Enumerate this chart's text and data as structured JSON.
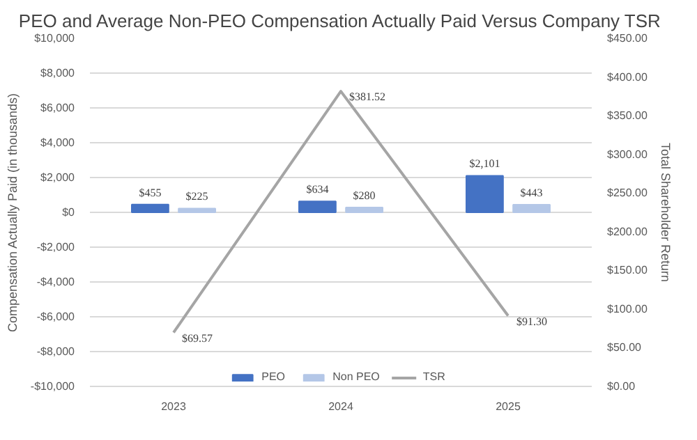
{
  "chart_data": {
    "type": "bar",
    "title": "PEO and Average Non-PEO Compensation Actually Paid Versus Company TSR",
    "ylabel": "Compensation Actually Paid (in thousands)",
    "y2label": "Total Shareholder Return",
    "categories": [
      "2023",
      "2024",
      "2025"
    ],
    "series": [
      {
        "name": "PEO",
        "color": "#4472c4",
        "values": [
          455,
          634,
          2101
        ],
        "value_labels": [
          "$455",
          "$634",
          "$2,101"
        ]
      },
      {
        "name": "Non PEO",
        "color": "#b4c7e7",
        "values": [
          225,
          280,
          443
        ],
        "value_labels": [
          "$225",
          "$280",
          "$443"
        ]
      },
      {
        "name": "TSR",
        "type": "line",
        "axis": "y2",
        "color": "#a5a5a5",
        "values": [
          69.57,
          381.52,
          91.3
        ],
        "value_labels": [
          "$69.57",
          "$381.52",
          "$91.30"
        ]
      }
    ],
    "ylim": [
      -10000,
      10000
    ],
    "yticks": [
      {
        "value": -10000,
        "label": "-$10,000"
      },
      {
        "value": -8000,
        "label": "-$8,000"
      },
      {
        "value": -6000,
        "label": "-$6,000"
      },
      {
        "value": -4000,
        "label": "-$4,000"
      },
      {
        "value": -2000,
        "label": "-$2,000"
      },
      {
        "value": 0,
        "label": "$0"
      },
      {
        "value": 2000,
        "label": "$2,000"
      },
      {
        "value": 4000,
        "label": "$4,000"
      },
      {
        "value": 6000,
        "label": "$6,000"
      },
      {
        "value": 8000,
        "label": "$8,000"
      },
      {
        "value": 10000,
        "label": "$10,000"
      }
    ],
    "y2lim": [
      0,
      450
    ],
    "y2ticks": [
      {
        "value": 0,
        "label": "$0.00"
      },
      {
        "value": 50,
        "label": "$50.00"
      },
      {
        "value": 100,
        "label": "$100.00"
      },
      {
        "value": 150,
        "label": "$150.00"
      },
      {
        "value": 200,
        "label": "$200.00"
      },
      {
        "value": 250,
        "label": "$250.00"
      },
      {
        "value": 300,
        "label": "$300.00"
      },
      {
        "value": 350,
        "label": "$350.00"
      },
      {
        "value": 400,
        "label": "$400.00"
      },
      {
        "value": 450,
        "label": "$450.00"
      }
    ],
    "grid": "y",
    "legend": "bottom"
  }
}
